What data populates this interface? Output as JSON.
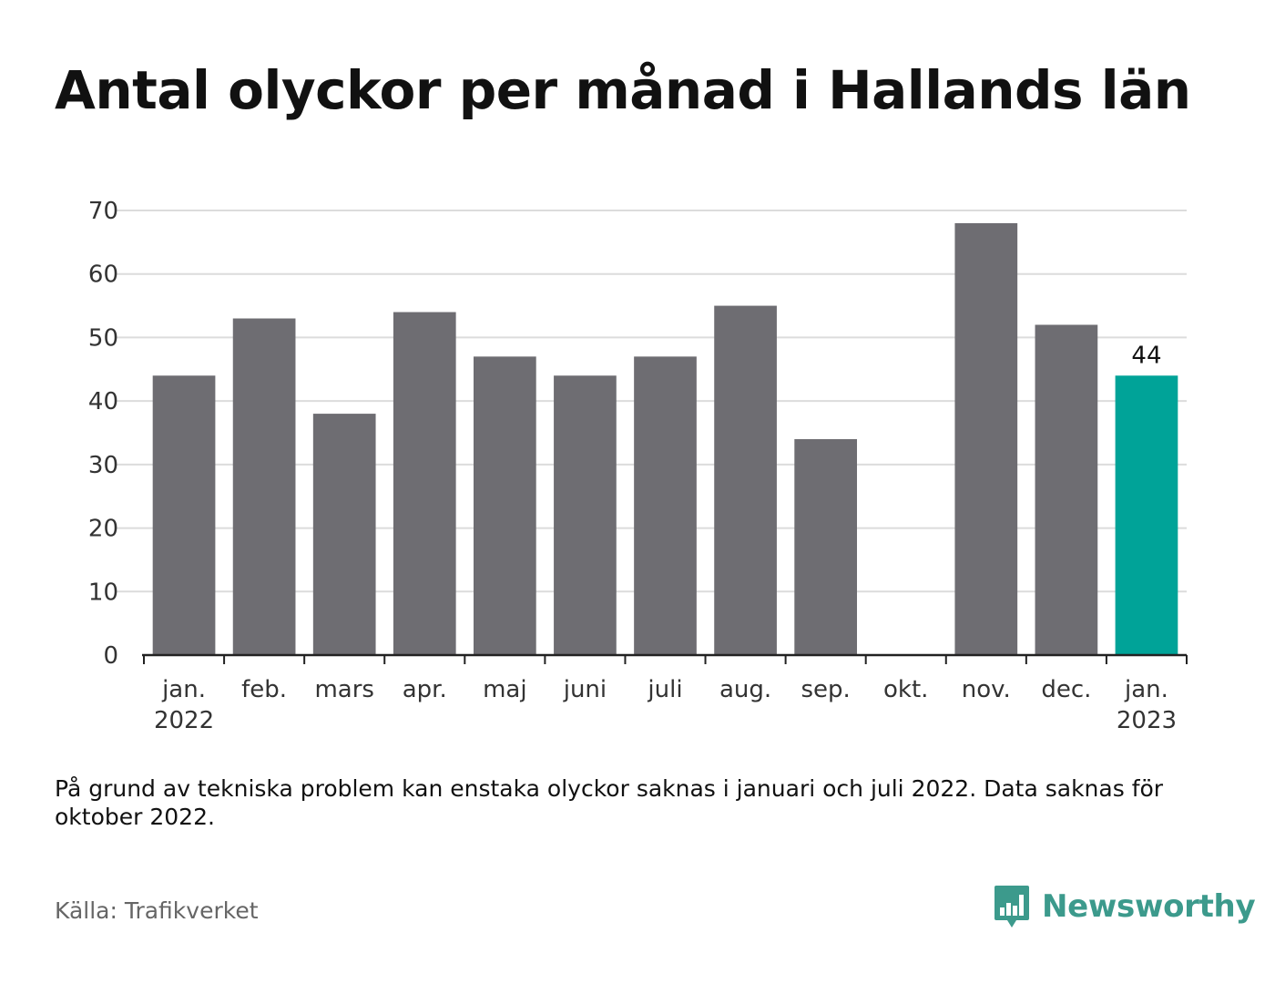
{
  "title": "Antal olyckor per månad i Hallands län",
  "note": "På grund av tekniska problem kan enstaka olyckor saknas i januari och juli 2022. Data saknas för oktober 2022.",
  "source": "Källa: Trafikverket",
  "brand": {
    "name": "Newsworthy",
    "icon": "newsworthy-logo-icon",
    "color": "#3c9a8c"
  },
  "chart_data": {
    "type": "bar",
    "categories": [
      "jan. 2022",
      "feb.",
      "mars",
      "apr.",
      "maj",
      "juni",
      "juli",
      "aug.",
      "sep.",
      "okt.",
      "nov.",
      "dec.",
      "jan. 2023"
    ],
    "category_labels": [
      [
        "jan.",
        "2022"
      ],
      [
        "feb."
      ],
      [
        "mars"
      ],
      [
        "apr."
      ],
      [
        "maj"
      ],
      [
        "juni"
      ],
      [
        "juli"
      ],
      [
        "aug."
      ],
      [
        "sep."
      ],
      [
        "okt."
      ],
      [
        "nov."
      ],
      [
        "dec."
      ],
      [
        "jan.",
        "2023"
      ]
    ],
    "values": [
      44,
      53,
      38,
      54,
      47,
      44,
      47,
      55,
      34,
      null,
      68,
      52,
      44
    ],
    "ylim": [
      0,
      70
    ],
    "yticks": [
      0,
      10,
      20,
      30,
      40,
      50,
      60,
      70
    ],
    "grid": true,
    "highlight_index": 12,
    "data_labels": [
      {
        "index": 12,
        "text": "44"
      }
    ],
    "colors": {
      "bar": "#6e6d72",
      "highlight": "#00a398",
      "grid": "#dcdcdc",
      "axis": "#222222"
    }
  }
}
